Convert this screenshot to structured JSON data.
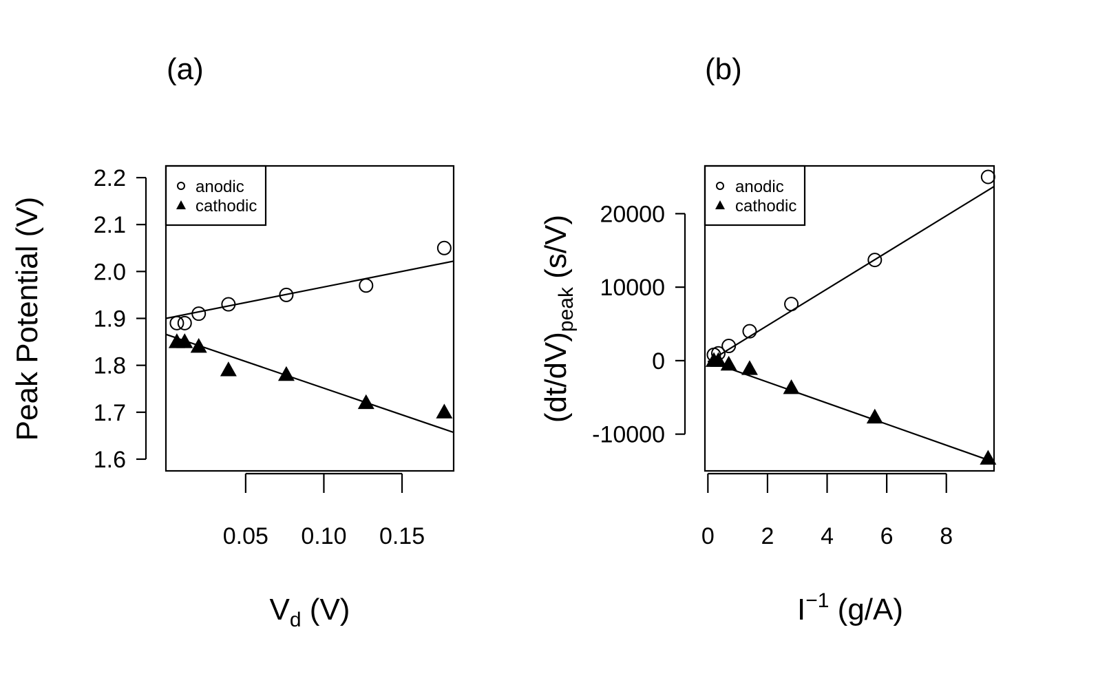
{
  "chart_data": [
    {
      "panel_label": "(a)",
      "type": "scatter",
      "ylabel": "Peak Potential (V)",
      "xlabel": {
        "main": "V",
        "sub": "d",
        "unit": " (V)"
      },
      "xlim": [
        -0.001,
        0.183
      ],
      "ylim": [
        1.575,
        2.225
      ],
      "xticks": [
        0.05,
        0.1,
        0.15
      ],
      "xtick_labels": [
        "0.05",
        "0.10",
        "0.15"
      ],
      "yticks": [
        1.6,
        1.7,
        1.8,
        1.9,
        2.0,
        2.1,
        2.2
      ],
      "ytick_labels": [
        "1.6",
        "1.7",
        "1.8",
        "1.9",
        "2.0",
        "2.1",
        "2.2"
      ],
      "legend": {
        "position": "top-left",
        "entries": [
          "anodic",
          "cathodic"
        ]
      },
      "series": [
        {
          "name": "anodic",
          "marker": "open-circle",
          "x": [
            0.006,
            0.011,
            0.02,
            0.039,
            0.076,
            0.127,
            0.177
          ],
          "y": [
            1.89,
            1.89,
            1.91,
            1.93,
            1.95,
            1.97,
            2.05
          ],
          "fit": {
            "x": [
              -0.001,
              0.183
            ],
            "y": [
              1.9,
              2.022
            ]
          }
        },
        {
          "name": "cathodic",
          "marker": "filled-triangle",
          "x": [
            0.006,
            0.011,
            0.02,
            0.039,
            0.076,
            0.127,
            0.177
          ],
          "y": [
            1.85,
            1.85,
            1.84,
            1.79,
            1.78,
            1.72,
            1.7
          ],
          "fit": {
            "x": [
              -0.001,
              0.183
            ],
            "y": [
              1.866,
              1.657
            ]
          }
        }
      ]
    },
    {
      "panel_label": "(b)",
      "type": "scatter",
      "ylabel": {
        "main": "(dt/dV)",
        "sub": "peak",
        "unit": " (s/V)"
      },
      "xlabel": {
        "main": "I",
        "sup": "−1",
        "unit": " (g/A)"
      },
      "xlim": [
        -0.1,
        9.6
      ],
      "ylim": [
        -15000,
        26500
      ],
      "xticks": [
        0,
        2,
        4,
        6,
        8
      ],
      "xtick_labels": [
        "0",
        "2",
        "4",
        "6",
        "8"
      ],
      "yticks": [
        -10000,
        0,
        10000,
        20000
      ],
      "ytick_labels": [
        "-10000",
        "0",
        "10000",
        "20000"
      ],
      "legend": {
        "position": "top-left",
        "entries": [
          "anodic",
          "cathodic"
        ]
      },
      "series": [
        {
          "name": "anodic",
          "marker": "open-circle",
          "x": [
            0.2,
            0.35,
            0.7,
            1.4,
            2.8,
            5.6,
            9.4
          ],
          "y": [
            800,
            1000,
            2000,
            4000,
            7700,
            13700,
            25000
          ],
          "fit": {
            "x": [
              0,
              9.6
            ],
            "y": [
              -200,
              23700
            ]
          }
        },
        {
          "name": "cathodic",
          "marker": "filled-triangle",
          "x": [
            0.2,
            0.35,
            0.7,
            1.4,
            2.8,
            5.6,
            9.4
          ],
          "y": [
            0,
            0,
            -500,
            -1100,
            -3700,
            -7700,
            -13300
          ],
          "fit": {
            "x": [
              0,
              9.6
            ],
            "y": [
              -50,
              -13800
            ]
          }
        }
      ]
    }
  ]
}
